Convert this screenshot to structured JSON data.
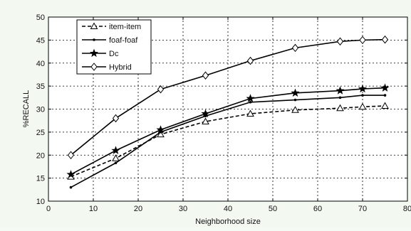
{
  "chart_data": {
    "type": "line",
    "title": "",
    "xlabel": "Neighborhood size",
    "ylabel": "%RECALL",
    "xlim": [
      0,
      80
    ],
    "ylim": [
      10,
      50
    ],
    "xticks": [
      0,
      10,
      20,
      30,
      40,
      50,
      60,
      70,
      80
    ],
    "yticks": [
      10,
      15,
      20,
      25,
      30,
      35,
      40,
      45,
      50
    ],
    "xtick_labels": [
      "0",
      "10",
      "20",
      "30",
      "40",
      "50",
      "60",
      "70",
      "80"
    ],
    "ytick_labels": [
      "10",
      "15",
      "20",
      "25",
      "30",
      "35",
      "40",
      "45",
      "50"
    ],
    "grid": true,
    "legend": "top-left",
    "x": [
      5,
      15,
      25,
      35,
      45,
      55,
      65,
      70,
      75
    ],
    "series": [
      {
        "name": "item-item",
        "marker": "triangle",
        "dash": "dashed",
        "values": [
          15.3,
          19.3,
          24.5,
          27.3,
          29.0,
          29.8,
          30.2,
          30.5,
          30.7
        ]
      },
      {
        "name": "foaf-foaf",
        "marker": "point",
        "dash": "solid",
        "values": [
          13.0,
          18.3,
          25.0,
          28.5,
          31.5,
          32.0,
          32.5,
          33.0,
          33.0
        ]
      },
      {
        "name": "Dc",
        "marker": "star",
        "dash": "solid",
        "values": [
          15.8,
          21.0,
          25.5,
          29.0,
          32.3,
          33.5,
          34.0,
          34.4,
          34.6
        ]
      },
      {
        "name": "Hybrid",
        "marker": "diamond",
        "dash": "solid",
        "values": [
          20.0,
          28.0,
          34.3,
          37.3,
          40.5,
          43.3,
          44.7,
          45.0,
          45.1
        ]
      }
    ]
  }
}
